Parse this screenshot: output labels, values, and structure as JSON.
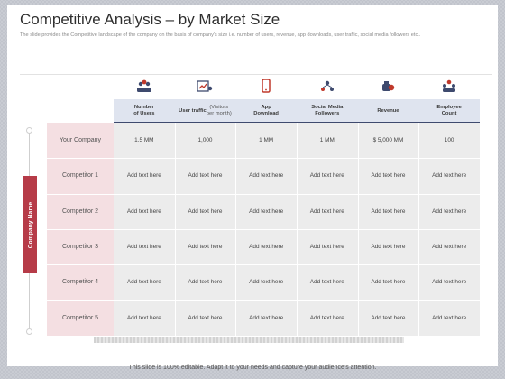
{
  "slide": {
    "title": "Competitive Analysis – by Market Size",
    "subtitle": "The slide provides the Competitive landscape of the company on the basis of company's size i.e. number of users, revenue, app downloads, user traffic, social media followers etc..",
    "side_label": "Company Name",
    "footer": "This slide is 100% editable. Adapt it to your needs and capture your audience's attention."
  },
  "table": {
    "columns": [
      {
        "label": "Number\nof Users",
        "icon": "users-group-icon"
      },
      {
        "label": "User traffic",
        "sublabel": "(Visitors\nper month)",
        "icon": "traffic-chart-icon"
      },
      {
        "label": "App\nDownload",
        "icon": "mobile-phone-icon"
      },
      {
        "label": "Social Media\nFollowers",
        "icon": "social-network-icon"
      },
      {
        "label": "Revenue",
        "icon": "money-bag-icon"
      },
      {
        "label": "Employee\nCount",
        "icon": "employees-icon"
      }
    ],
    "rows": [
      {
        "label": "Your Company",
        "values": [
          "1.5 MM",
          "1,000",
          "1 MM",
          "1 MM",
          "$ 5,000 MM",
          "100"
        ]
      },
      {
        "label": "Competitor 1",
        "values": [
          "Add text here",
          "Add text here",
          "Add text here",
          "Add text here",
          "Add text here",
          "Add text here"
        ]
      },
      {
        "label": "Competitor 2",
        "values": [
          "Add text here",
          "Add text here",
          "Add text here",
          "Add text here",
          "Add text here",
          "Add text here"
        ]
      },
      {
        "label": "Competitor 3",
        "values": [
          "Add text here",
          "Add text here",
          "Add text here",
          "Add text here",
          "Add text here",
          "Add text here"
        ]
      },
      {
        "label": "Competitor 4",
        "values": [
          "Add text here",
          "Add text here",
          "Add text here",
          "Add text here",
          "Add text here",
          "Add text here"
        ]
      },
      {
        "label": "Competitor 5",
        "values": [
          "Add text here",
          "Add text here",
          "Add text here",
          "Add text here",
          "Add text here",
          "Add text here"
        ]
      }
    ]
  },
  "colors": {
    "accent": "#b63b48",
    "header_bg": "#dfe4ef",
    "header_rule": "#3e4a6e",
    "cell_bg": "#ececec",
    "label_bg": "#f4dfe2"
  }
}
